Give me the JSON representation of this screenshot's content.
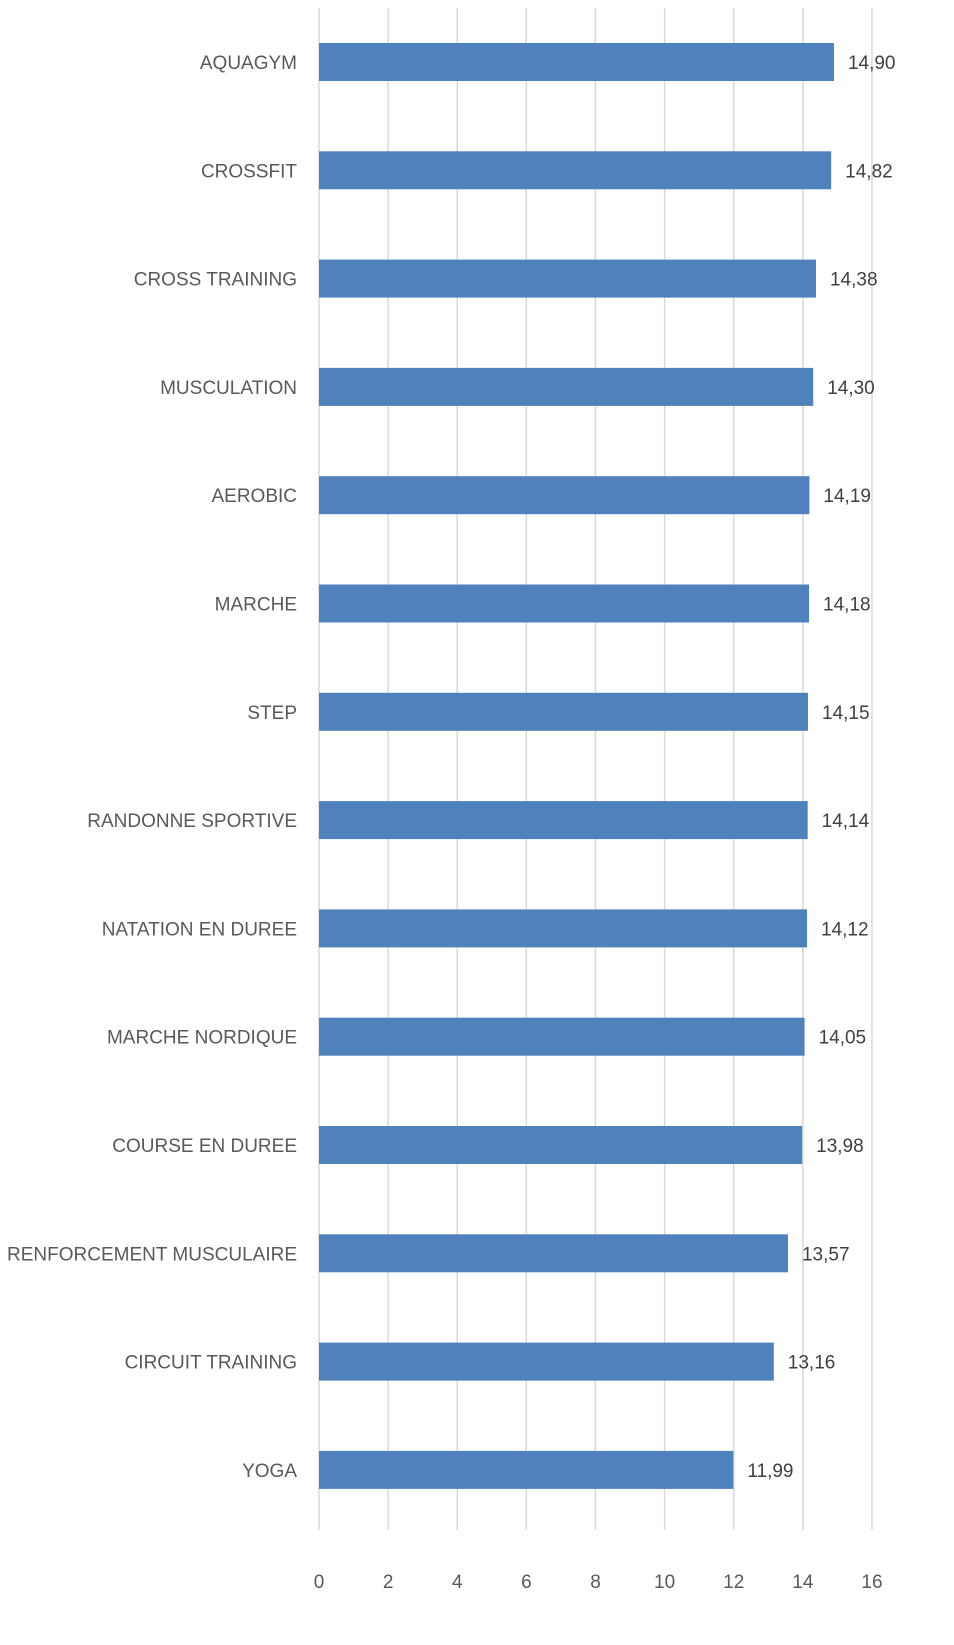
{
  "chart_data": {
    "type": "bar",
    "orientation": "horizontal",
    "categories": [
      "AQUAGYM",
      "CROSSFIT",
      "CROSS TRAINING",
      "MUSCULATION",
      "AEROBIC",
      "MARCHE",
      "STEP",
      "RANDONNE SPORTIVE",
      "NATATION EN DUREE",
      "MARCHE NORDIQUE",
      "COURSE EN DUREE",
      "RENFORCEMENT MUSCULAIRE",
      "CIRCUIT TRAINING",
      "YOGA"
    ],
    "values": [
      14.9,
      14.82,
      14.38,
      14.3,
      14.19,
      14.18,
      14.15,
      14.14,
      14.12,
      14.05,
      13.98,
      13.57,
      13.16,
      11.99
    ],
    "value_labels": [
      "14,90",
      "14,82",
      "14,38",
      "14,30",
      "14,19",
      "14,18",
      "14,15",
      "14,14",
      "14,12",
      "14,05",
      "13,98",
      "13,57",
      "13,16",
      "11,99"
    ],
    "x_ticks": [
      "0",
      "2",
      "4",
      "6",
      "8",
      "10",
      "12",
      "14",
      "16"
    ],
    "xlim": [
      0,
      16
    ],
    "title": "",
    "xlabel": "",
    "ylabel": "",
    "grid": "vertical",
    "legend": "none",
    "colors": {
      "bar": "#4f81bd",
      "grid": "#d9d9d9",
      "category_text": "#595959",
      "value_text": "#404040"
    }
  }
}
